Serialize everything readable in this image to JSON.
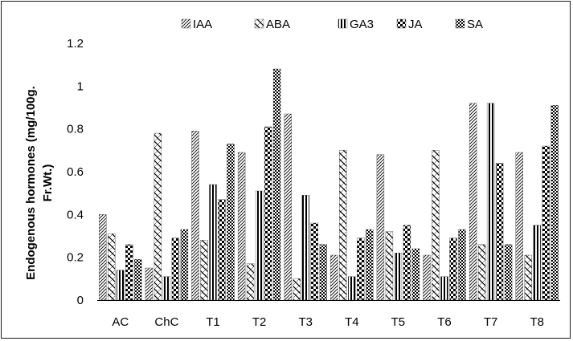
{
  "chart_data": {
    "type": "bar",
    "title": "",
    "xlabel": "",
    "ylabel": "Endogenous hormones  (mg/100g. Fr.Wt.)",
    "ylabel_lines": [
      "Endogenous hormones  (mg/100g.",
      "Fr.Wt.)"
    ],
    "ylim": [
      0,
      1.2
    ],
    "yticks": [
      0,
      0.2,
      0.4,
      0.6,
      0.8,
      1,
      1.2
    ],
    "ytick_labels": [
      "0",
      "0.2",
      "0.4",
      "0.6",
      "0.8",
      "1",
      "1.2"
    ],
    "grid": false,
    "legend_position": "top",
    "categories": [
      "AC",
      "ChC",
      "T1",
      "T2",
      "T3",
      "T4",
      "T5",
      "T6",
      "T7",
      "T8"
    ],
    "series": [
      {
        "name": "IAA",
        "values": [
          0.4,
          0.15,
          0.79,
          0.69,
          0.87,
          0.21,
          0.68,
          0.21,
          0.92,
          0.69
        ]
      },
      {
        "name": "ABA",
        "values": [
          0.31,
          0.78,
          0.28,
          0.17,
          0.1,
          0.7,
          0.32,
          0.7,
          0.26,
          0.21
        ]
      },
      {
        "name": "GA3",
        "values": [
          0.14,
          0.11,
          0.54,
          0.51,
          0.49,
          0.11,
          0.22,
          0.11,
          0.92,
          0.35
        ]
      },
      {
        "name": "JA",
        "values": [
          0.26,
          0.29,
          0.47,
          0.81,
          0.36,
          0.29,
          0.35,
          0.29,
          0.64,
          0.72
        ]
      },
      {
        "name": "SA",
        "values": [
          0.19,
          0.33,
          0.73,
          1.08,
          0.26,
          0.33,
          0.24,
          0.33,
          0.26,
          0.91
        ]
      }
    ],
    "series_styles": {
      "IAA": "diag-dense",
      "ABA": "crosshatch-wide",
      "GA3": "vertical-lines",
      "JA": "checker-large",
      "SA": "checker-small"
    }
  }
}
